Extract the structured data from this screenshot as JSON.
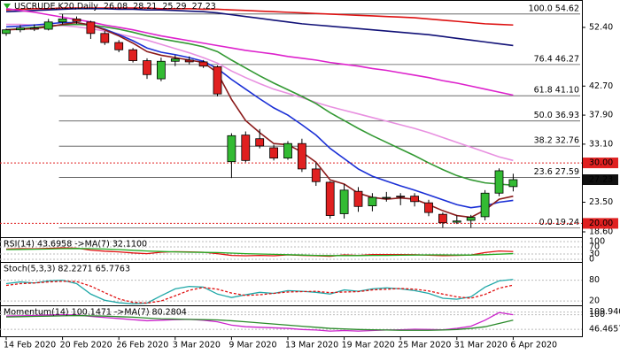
{
  "chart_data": [
    {
      "type": "candlestick",
      "title": "USCRUDE,K20,Daily",
      "categories": [
        "14 Feb 2020",
        null,
        null,
        null,
        "20 Feb 2020",
        null,
        null,
        null,
        "26 Feb 2020",
        null,
        null,
        null,
        "3 Mar 2020",
        null,
        null,
        null,
        "9 Mar 2020",
        null,
        null,
        null,
        "13 Mar 2020",
        null,
        null,
        null,
        "19 Mar 2020",
        null,
        null,
        null,
        "25 Mar 2020",
        null,
        null,
        null,
        "31 Mar 2020",
        null,
        null,
        null,
        "6 Apr 2020"
      ],
      "open": [
        51.4,
        52.0,
        52.3,
        52.1,
        53.3,
        53.8,
        53.3,
        51.4,
        49.9,
        48.7,
        46.9,
        43.9,
        46.8,
        47.0,
        46.7,
        45.9,
        30.2,
        34.6,
        34.0,
        32.5,
        30.8,
        33.2,
        29.0,
        26.8,
        21.6,
        25.3,
        22.9,
        24.2,
        24.5,
        24.5,
        23.4,
        21.5,
        20.2,
        20.5,
        21.1,
        25.0,
        26.08
      ],
      "high": [
        52.2,
        52.8,
        52.9,
        53.8,
        54.6,
        54.2,
        53.5,
        51.8,
        50.3,
        49.0,
        47.3,
        47.4,
        47.8,
        47.6,
        47.0,
        46.1,
        34.9,
        35.2,
        35.6,
        33.0,
        33.6,
        34.0,
        30.0,
        27.0,
        26.5,
        26.0,
        25.0,
        25.2,
        25.0,
        25.0,
        23.9,
        21.8,
        21.3,
        21.4,
        25.5,
        29.1,
        28.21
      ],
      "low": [
        51.0,
        51.6,
        51.8,
        51.9,
        52.9,
        53.0,
        50.5,
        49.5,
        48.3,
        46.6,
        43.9,
        43.5,
        46.0,
        46.3,
        45.7,
        41.0,
        27.5,
        30.1,
        32.4,
        30.4,
        30.5,
        28.5,
        26.2,
        20.8,
        20.8,
        21.9,
        22.0,
        23.6,
        23.0,
        22.8,
        21.2,
        19.3,
        19.9,
        19.3,
        20.5,
        24.5,
        25.29
      ],
      "close": [
        52.0,
        52.3,
        52.1,
        53.3,
        53.8,
        53.4,
        51.4,
        49.9,
        48.7,
        46.9,
        44.6,
        46.8,
        47.2,
        46.7,
        46.0,
        41.4,
        34.5,
        30.4,
        32.8,
        30.8,
        33.2,
        29.0,
        26.9,
        21.3,
        25.5,
        22.8,
        24.3,
        24.3,
        24.4,
        23.6,
        21.8,
        20.1,
        20.4,
        21.0,
        25.0,
        28.7,
        27.23
      ],
      "up_color": "#33bb33",
      "down_color": "#e02020",
      "lines": [
        {
          "color": "#dd1111",
          "values": [
            55.3,
            55.4,
            55.5,
            55.5,
            55.6,
            55.6,
            55.6,
            55.6,
            55.6,
            55.6,
            55.6,
            55.5,
            55.5,
            55.5,
            55.4,
            55.4,
            55.3,
            55.2,
            55.1,
            55.0,
            54.9,
            54.8,
            54.7,
            54.6,
            54.5,
            54.4,
            54.3,
            54.2,
            54.1,
            54.0,
            53.8,
            53.6,
            53.4,
            53.2,
            53.0,
            52.9,
            52.8
          ]
        },
        {
          "color": "#111177",
          "values": [
            55.0,
            55.1,
            55.2,
            55.3,
            55.4,
            55.5,
            55.5,
            55.5,
            55.4,
            55.4,
            55.3,
            55.3,
            55.2,
            55.1,
            55.0,
            54.8,
            54.5,
            54.2,
            53.9,
            53.6,
            53.3,
            53.0,
            52.8,
            52.6,
            52.4,
            52.2,
            52.0,
            51.8,
            51.6,
            51.4,
            51.2,
            50.9,
            50.6,
            50.3,
            50.0,
            49.7,
            49.4
          ]
        },
        {
          "color": "#dd22cc",
          "values": [
            55.5,
            55.2,
            54.9,
            54.5,
            54.1,
            53.7,
            53.3,
            52.8,
            52.4,
            52.0,
            51.5,
            51.0,
            50.6,
            50.2,
            49.8,
            49.4,
            49.0,
            48.6,
            48.3,
            48.0,
            47.6,
            47.3,
            47.0,
            46.6,
            46.3,
            46.0,
            45.6,
            45.3,
            44.9,
            44.5,
            44.1,
            43.6,
            43.2,
            42.7,
            42.2,
            41.7,
            41.2
          ]
        },
        {
          "color": "#e890e0",
          "values": [
            52.9,
            52.9,
            52.8,
            52.8,
            52.7,
            52.5,
            52.2,
            51.8,
            51.3,
            50.8,
            50.3,
            49.6,
            48.9,
            48.2,
            47.4,
            46.5,
            45.2,
            44.1,
            43.1,
            42.2,
            41.5,
            40.8,
            40.0,
            39.3,
            38.7,
            38.1,
            37.5,
            36.9,
            36.3,
            35.7,
            35.0,
            34.2,
            33.4,
            32.6,
            31.8,
            31.0,
            30.4
          ]
        },
        {
          "color": "#339933",
          "values": [
            52.0,
            52.2,
            52.4,
            52.6,
            52.8,
            52.9,
            52.8,
            52.5,
            52.1,
            51.6,
            51.0,
            50.5,
            50.1,
            49.7,
            49.2,
            48.4,
            47.0,
            45.7,
            44.4,
            43.2,
            42.1,
            41.0,
            39.8,
            38.3,
            37.0,
            35.7,
            34.5,
            33.4,
            32.3,
            31.2,
            30.0,
            28.9,
            27.9,
            27.2,
            26.7,
            26.5,
            26.3
          ]
        },
        {
          "color": "#1a2fd6",
          "values": [
            52.5,
            52.6,
            52.8,
            53.0,
            53.2,
            53.2,
            52.8,
            52.1,
            51.2,
            50.2,
            49.0,
            48.3,
            47.9,
            47.4,
            46.8,
            45.6,
            43.8,
            42.2,
            40.6,
            39.1,
            37.9,
            36.3,
            34.6,
            32.4,
            30.7,
            29.0,
            27.8,
            27.0,
            26.2,
            25.5,
            24.7,
            23.9,
            23.1,
            22.6,
            22.9,
            23.5,
            23.8
          ]
        },
        {
          "color": "#8b1a1a",
          "values": [
            52.0,
            52.1,
            52.2,
            52.5,
            52.9,
            53.2,
            52.8,
            52.0,
            51.0,
            49.8,
            48.4,
            47.8,
            47.4,
            47.0,
            46.6,
            44.9,
            40.5,
            37.0,
            35.0,
            33.2,
            33.0,
            31.8,
            30.1,
            27.2,
            26.5,
            25.0,
            24.3,
            24.0,
            24.2,
            24.0,
            23.1,
            22.1,
            21.3,
            21.0,
            22.2,
            24.0,
            24.5
          ]
        }
      ],
      "fib_levels": [
        {
          "value": 54.62,
          "label": "100.0 54.62"
        },
        {
          "value": 46.27,
          "label": "76.4 46.27"
        },
        {
          "value": 41.1,
          "label": "61.8 41.10"
        },
        {
          "value": 36.93,
          "label": "50.0 36.93"
        },
        {
          "value": 32.76,
          "label": "38.2 32.76"
        },
        {
          "value": 27.59,
          "label": "23.6 27.59"
        },
        {
          "value": 19.24,
          "label": "0.0 19.24"
        }
      ],
      "levels": [
        {
          "value": 30,
          "label": "30.00"
        },
        {
          "value": 20,
          "label": "20.00"
        }
      ],
      "level_color": "#e02020",
      "ylim": [
        17.72,
        56.2
      ],
      "yticks": [
        {
          "value": 52.4,
          "label": "52.40"
        },
        {
          "value": 42.7,
          "label": "42.70"
        },
        {
          "value": 37.9,
          "label": "37.90"
        },
        {
          "value": 33.1,
          "label": "33.10"
        },
        {
          "value": 23.5,
          "label": "23.50"
        },
        {
          "value": 18.6,
          "label": "18.60"
        }
      ]
    },
    {
      "type": "line",
      "title": "RSI(14) 43.6958 ->MA(7) 32.1100",
      "ylim": [
        -15,
        115
      ],
      "yticks": [
        100,
        70,
        30,
        0
      ],
      "series": [
        {
          "color": "#e01010",
          "values": [
            58,
            60,
            59,
            62,
            65,
            63,
            52,
            46,
            42,
            36,
            32,
            40,
            43,
            42,
            40,
            32,
            22,
            20,
            22,
            20,
            25,
            22,
            20,
            17,
            25,
            22,
            27,
            27,
            27,
            26,
            23,
            21,
            22,
            24,
            38,
            47,
            43.6958
          ]
        },
        {
          "color": "#22aa22",
          "values": [
            55,
            56,
            57,
            58,
            60,
            61,
            60,
            58,
            55,
            51,
            47,
            44,
            42,
            40,
            39,
            38,
            35,
            32,
            30,
            28,
            26,
            24,
            22,
            21,
            21,
            21,
            22,
            22,
            23,
            24,
            25,
            25,
            24,
            24,
            26,
            29,
            32.11
          ]
        }
      ]
    },
    {
      "type": "line",
      "title": "Stoch(5,3,3) 82.2271 65.7763",
      "ylim": [
        7.5,
        127.5
      ],
      "yticks": [
        80,
        20
      ],
      "series": [
        {
          "color": "#20a8a8",
          "values": [
            70,
            75,
            72,
            78,
            80,
            70,
            40,
            22,
            15,
            12,
            14,
            35,
            55,
            62,
            60,
            40,
            30,
            38,
            45,
            42,
            50,
            48,
            45,
            40,
            52,
            48,
            55,
            58,
            55,
            50,
            42,
            28,
            25,
            32,
            60,
            78,
            82.2271
          ]
        },
        {
          "color": "#e01010",
          "dashed": true,
          "values": [
            65,
            70,
            72,
            75,
            77,
            76,
            63,
            44,
            26,
            16,
            14,
            20,
            35,
            51,
            59,
            54,
            43,
            36,
            38,
            42,
            46,
            47,
            48,
            44,
            46,
            47,
            52,
            54,
            56,
            54,
            49,
            40,
            32,
            28,
            39,
            57,
            65.7763
          ]
        }
      ]
    },
    {
      "type": "line",
      "title": "Momentum(14) 100.1471 ->MA(7) 80.2804",
      "ylim": [
        21,
        128
      ],
      "yticks": [
        109.9407,
        100,
        46.4657
      ],
      "series": [
        {
          "color": "#cc22cc",
          "values": [
            95,
            96,
            97,
            99,
            100,
            99,
            94,
            90,
            86,
            82,
            78,
            80,
            82,
            83,
            80,
            74,
            62,
            56,
            54,
            52,
            50,
            46,
            44,
            40,
            42,
            40,
            42,
            44,
            45,
            47,
            46,
            45,
            50,
            58,
            80,
            108,
            100.1471
          ]
        },
        {
          "color": "#2a8a2a",
          "values": [
            92,
            93,
            94,
            95,
            96,
            97,
            96,
            95,
            93,
            91,
            88,
            85,
            84,
            83,
            82,
            81,
            78,
            74,
            70,
            66,
            62,
            58,
            54,
            50,
            48,
            46,
            45,
            44,
            43,
            43,
            43,
            44,
            46,
            50,
            56,
            68,
            80.2804
          ]
        }
      ]
    }
  ]
}
